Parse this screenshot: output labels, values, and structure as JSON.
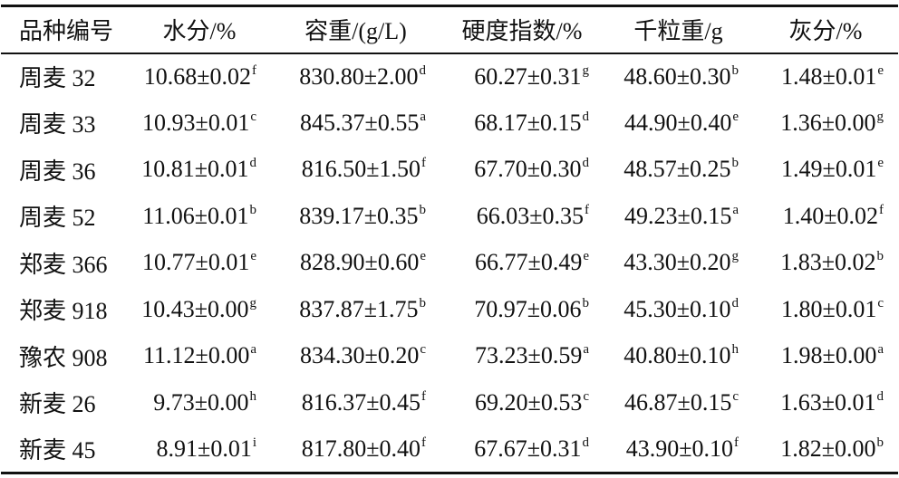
{
  "table": {
    "header": [
      "品种编号",
      "水分/%",
      "容重/(g/L)",
      "硬度指数/%",
      "千粒重/g",
      "灰分/%"
    ],
    "rows": [
      [
        "周麦 32",
        {
          "text": "10.68±0.02",
          "sup": "f"
        },
        {
          "text": "830.80±2.00",
          "sup": "d"
        },
        {
          "text": "60.27±0.31",
          "sup": "g"
        },
        {
          "text": "48.60±0.30",
          "sup": "b"
        },
        {
          "text": "1.48±0.01",
          "sup": "e"
        }
      ],
      [
        "周麦 33",
        {
          "text": "10.93±0.01",
          "sup": "c"
        },
        {
          "text": "845.37±0.55",
          "sup": "a"
        },
        {
          "text": "68.17±0.15",
          "sup": "d"
        },
        {
          "text": "44.90±0.40",
          "sup": "e"
        },
        {
          "text": "1.36±0.00",
          "sup": "g"
        }
      ],
      [
        "周麦 36",
        {
          "text": "10.81±0.01",
          "sup": "d"
        },
        {
          "text": "816.50±1.50",
          "sup": "f"
        },
        {
          "text": "67.70±0.30",
          "sup": "d"
        },
        {
          "text": "48.57±0.25",
          "sup": "b"
        },
        {
          "text": "1.49±0.01",
          "sup": "e"
        }
      ],
      [
        "周麦 52",
        {
          "text": "11.06±0.01",
          "sup": "b"
        },
        {
          "text": "839.17±0.35",
          "sup": "b"
        },
        {
          "text": "66.03±0.35",
          "sup": "f"
        },
        {
          "text": "49.23±0.15",
          "sup": "a"
        },
        {
          "text": "1.40±0.02",
          "sup": "f"
        }
      ],
      [
        "郑麦 366",
        {
          "text": "10.77±0.01",
          "sup": "e"
        },
        {
          "text": "828.90±0.60",
          "sup": "e"
        },
        {
          "text": "66.77±0.49",
          "sup": "e"
        },
        {
          "text": "43.30±0.20",
          "sup": "g"
        },
        {
          "text": "1.83±0.02",
          "sup": "b"
        }
      ],
      [
        "郑麦 918",
        {
          "text": "10.43±0.00",
          "sup": "g"
        },
        {
          "text": "837.87±1.75",
          "sup": "b"
        },
        {
          "text": "70.97±0.06",
          "sup": "b"
        },
        {
          "text": "45.30±0.10",
          "sup": "d"
        },
        {
          "text": "1.80±0.01",
          "sup": "c"
        }
      ],
      [
        "豫农 908",
        {
          "text": "11.12±0.00",
          "sup": "a"
        },
        {
          "text": "834.30±0.20",
          "sup": "c"
        },
        {
          "text": "73.23±0.59",
          "sup": "a"
        },
        {
          "text": "40.80±0.10",
          "sup": "h"
        },
        {
          "text": "1.98±0.00",
          "sup": "a"
        }
      ],
      [
        "新麦 26",
        {
          "text": "9.73±0.00",
          "sup": "h"
        },
        {
          "text": "816.37±0.45",
          "sup": "f"
        },
        {
          "text": "69.20±0.53",
          "sup": "c"
        },
        {
          "text": "46.87±0.15",
          "sup": "c"
        },
        {
          "text": "1.63±0.01",
          "sup": "d"
        }
      ],
      [
        "新麦 45",
        {
          "text": "8.91±0.01",
          "sup": "i"
        },
        {
          "text": "817.80±0.40",
          "sup": "f"
        },
        {
          "text": "67.67±0.31",
          "sup": "d"
        },
        {
          "text": "43.90±0.10",
          "sup": "f"
        },
        {
          "text": "1.82±0.00",
          "sup": "b"
        }
      ]
    ]
  }
}
